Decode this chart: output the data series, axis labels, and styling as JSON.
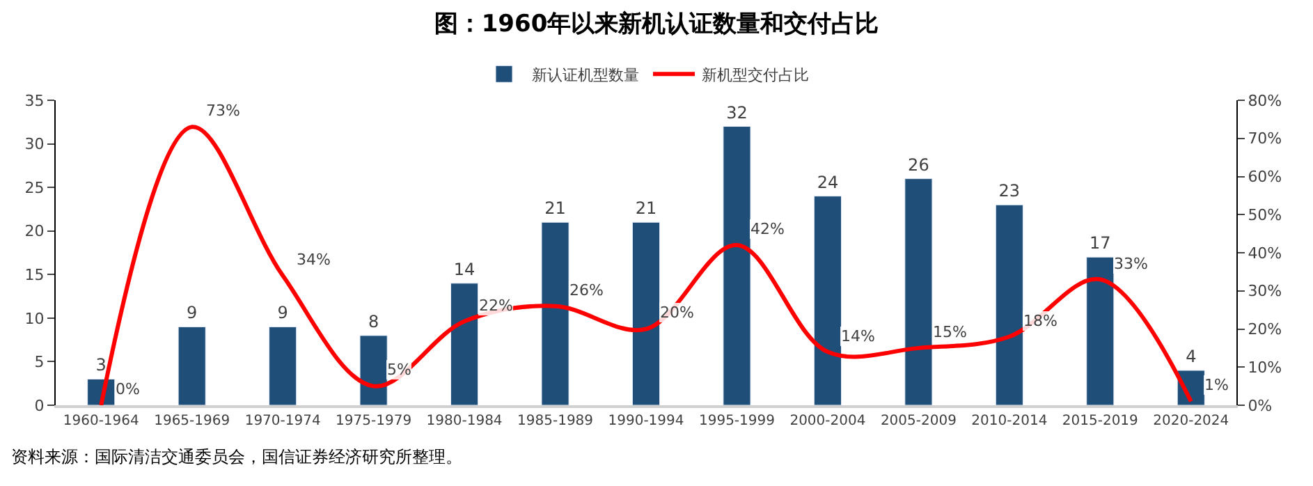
{
  "chart_data": {
    "type": "bar",
    "title": "图：1960年以来新机认证数量和交付占比",
    "categories": [
      "1960-1964",
      "1965-1969",
      "1970-1974",
      "1975-1979",
      "1980-1984",
      "1985-1989",
      "1990-1994",
      "1995-1999",
      "2000-2004",
      "2005-2009",
      "2010-2014",
      "2015-2019",
      "2020-2024"
    ],
    "series": [
      {
        "name": "新认证机型数量",
        "color": "#1f4e79",
        "values": [
          3,
          9,
          9,
          8,
          14,
          21,
          21,
          32,
          24,
          26,
          23,
          17,
          4
        ],
        "data_labels": true
      },
      {
        "name": "新机型交付占比",
        "type": "line",
        "axis": "y2",
        "color": "#ff0000",
        "values": [
          0,
          73,
          34,
          5,
          22,
          26,
          20,
          42,
          14,
          15,
          18,
          33,
          1
        ],
        "value_labels": [
          "0%",
          "73%",
          "34%",
          "5%",
          "22%",
          "26%",
          "20%",
          "42%",
          "14%",
          "15%",
          "18%",
          "33%",
          "1%"
        ]
      }
    ],
    "ylim": [
      0,
      35
    ],
    "yticks": [
      0,
      5,
      10,
      15,
      20,
      25,
      30,
      35
    ],
    "y2lim": [
      0,
      80
    ],
    "y2ticks": [
      {
        "value": 0,
        "label": "0%"
      },
      {
        "value": 10,
        "label": "10%"
      },
      {
        "value": 20,
        "label": "20%"
      },
      {
        "value": 30,
        "label": "30%"
      },
      {
        "value": 40,
        "label": "40%"
      },
      {
        "value": 50,
        "label": "50%"
      },
      {
        "value": 60,
        "label": "60%"
      },
      {
        "value": 70,
        "label": "70%"
      },
      {
        "value": 80,
        "label": "80%"
      }
    ],
    "legend": "top",
    "marker": "none",
    "line_style": "solid",
    "annotations": [
      "资料来源：国际清洁交通委员会，国信证券经济研究所整理。"
    ]
  }
}
